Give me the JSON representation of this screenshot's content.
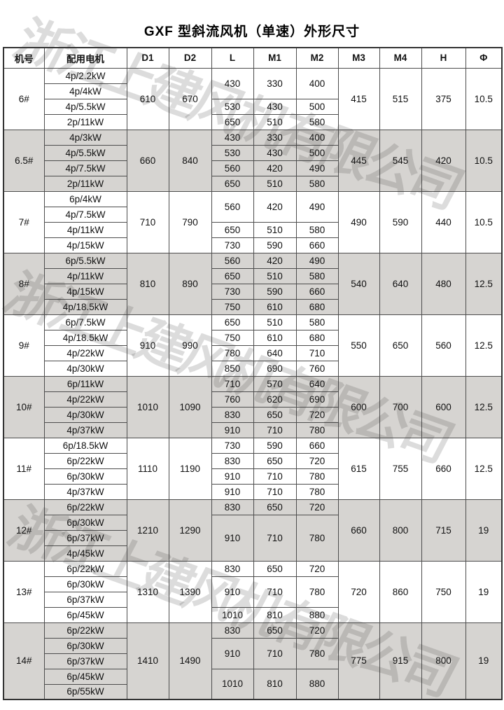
{
  "title": "GXF 型斜流风机（单速）外形尺寸",
  "watermark": {
    "text": "浙江上建风机有限公司",
    "color": "rgba(45,45,45,0.17)"
  },
  "colors": {
    "shaded_row_bg": "#d6d4d1",
    "border": "#4d4d4d",
    "text": "#111111"
  },
  "table": {
    "headers": [
      "机号",
      "配用电机",
      "D1",
      "D2",
      "L",
      "M1",
      "M2",
      "M3",
      "M4",
      "H",
      "Φ"
    ],
    "sections": [
      {
        "model": "6#",
        "d1": "610",
        "d2": "670",
        "m3": "415",
        "m4": "515",
        "h": "375",
        "phi": "10.5",
        "motors": [
          "4p/2.2kW",
          "4p/4kW",
          "4p/5.5kW",
          "2p/11kW"
        ],
        "groups": [
          {
            "l": "430",
            "m1": "330",
            "m2": "400",
            "span": 2
          },
          {
            "l": "530",
            "m1": "430",
            "m2": "500",
            "span": 1
          },
          {
            "l": "650",
            "m1": "510",
            "m2": "580",
            "span": 1
          }
        ]
      },
      {
        "model": "6.5#",
        "d1": "660",
        "d2": "840",
        "m3": "445",
        "m4": "545",
        "h": "420",
        "phi": "10.5",
        "motors": [
          "4p/3kW",
          "4p/5.5kW",
          "4p/7.5kW",
          "2p/11kW"
        ],
        "groups": [
          {
            "l": "430",
            "m1": "330",
            "m2": "400",
            "span": 1
          },
          {
            "l": "530",
            "m1": "430",
            "m2": "500",
            "span": 1
          },
          {
            "l": "560",
            "m1": "420",
            "m2": "490",
            "span": 1
          },
          {
            "l": "650",
            "m1": "510",
            "m2": "580",
            "span": 1
          }
        ]
      },
      {
        "model": "7#",
        "d1": "710",
        "d2": "790",
        "m3": "490",
        "m4": "590",
        "h": "440",
        "phi": "10.5",
        "motors": [
          "6p/4kW",
          "4p/7.5kW",
          "4p/11kW",
          "4p/15kW"
        ],
        "groups": [
          {
            "l": "560",
            "m1": "420",
            "m2": "490",
            "span": 2
          },
          {
            "l": "650",
            "m1": "510",
            "m2": "580",
            "span": 1
          },
          {
            "l": "730",
            "m1": "590",
            "m2": "660",
            "span": 1
          }
        ]
      },
      {
        "model": "8#",
        "d1": "810",
        "d2": "890",
        "m3": "540",
        "m4": "640",
        "h": "480",
        "phi": "12.5",
        "motors": [
          "6p/5.5kW",
          "4p/11kW",
          "4p/15kW",
          "4p/18.5kW"
        ],
        "groups": [
          {
            "l": "560",
            "m1": "420",
            "m2": "490",
            "span": 1
          },
          {
            "l": "650",
            "m1": "510",
            "m2": "580",
            "span": 1
          },
          {
            "l": "730",
            "m1": "590",
            "m2": "660",
            "span": 1
          },
          {
            "l": "750",
            "m1": "610",
            "m2": "680",
            "span": 1
          }
        ]
      },
      {
        "model": "9#",
        "d1": "910",
        "d2": "990",
        "m3": "550",
        "m4": "650",
        "h": "560",
        "phi": "12.5",
        "motors": [
          "6p/7.5kW",
          "4p/18.5kW",
          "4p/22kW",
          "4p/30kW"
        ],
        "groups": [
          {
            "l": "650",
            "m1": "510",
            "m2": "580",
            "span": 1
          },
          {
            "l": "750",
            "m1": "610",
            "m2": "680",
            "span": 1
          },
          {
            "l": "780",
            "m1": "640",
            "m2": "710",
            "span": 1
          },
          {
            "l": "850",
            "m1": "690",
            "m2": "760",
            "span": 1
          }
        ]
      },
      {
        "model": "10#",
        "d1": "1010",
        "d2": "1090",
        "m3": "600",
        "m4": "700",
        "h": "600",
        "phi": "12.5",
        "motors": [
          "6p/11kW",
          "4p/22kW",
          "4p/30kW",
          "4p/37kW"
        ],
        "groups": [
          {
            "l": "710",
            "m1": "570",
            "m2": "640",
            "span": 1
          },
          {
            "l": "760",
            "m1": "620",
            "m2": "690",
            "span": 1
          },
          {
            "l": "830",
            "m1": "650",
            "m2": "720",
            "span": 1
          },
          {
            "l": "910",
            "m1": "710",
            "m2": "780",
            "span": 1
          }
        ]
      },
      {
        "model": "11#",
        "d1": "1110",
        "d2": "1190",
        "m3": "615",
        "m4": "755",
        "h": "660",
        "phi": "12.5",
        "motors": [
          "6p/18.5kW",
          "6p/22kW",
          "6p/30kW",
          "4p/37kW"
        ],
        "groups": [
          {
            "l": "730",
            "m1": "590",
            "m2": "660",
            "span": 1
          },
          {
            "l": "830",
            "m1": "650",
            "m2": "720",
            "span": 1
          },
          {
            "l": "910",
            "m1": "710",
            "m2": "780",
            "span": 1
          },
          {
            "l": "910",
            "m1": "710",
            "m2": "780",
            "span": 1
          }
        ]
      },
      {
        "model": "12#",
        "d1": "1210",
        "d2": "1290",
        "m3": "660",
        "m4": "800",
        "h": "715",
        "phi": "19",
        "motors": [
          "6p/22kW",
          "6p/30kW",
          "6p/37kW",
          "4p/45kW"
        ],
        "groups": [
          {
            "l": "830",
            "m1": "650",
            "m2": "720",
            "span": 1
          },
          {
            "l": "910",
            "m1": "710",
            "m2": "780",
            "span": 3
          }
        ]
      },
      {
        "model": "13#",
        "d1": "1310",
        "d2": "1390",
        "m3": "720",
        "m4": "860",
        "h": "750",
        "phi": "19",
        "motors": [
          "6p/22kW",
          "6p/30kW",
          "6p/37kW",
          "6p/45kW"
        ],
        "groups": [
          {
            "l": "830",
            "m1": "650",
            "m2": "720",
            "span": 1
          },
          {
            "l": "910",
            "m1": "710",
            "m2": "780",
            "span": 2
          },
          {
            "l": "1010",
            "m1": "810",
            "m2": "880",
            "span": 1
          }
        ]
      },
      {
        "model": "14#",
        "d1": "1410",
        "d2": "1490",
        "m3": "775",
        "m4": "915",
        "h": "800",
        "phi": "19",
        "motors": [
          "6p/22kW",
          "6p/30kW",
          "6p/37kW",
          "6p/45kW",
          "6p/55kW"
        ],
        "groups": [
          {
            "l": "830",
            "m1": "650",
            "m2": "720",
            "span": 1
          },
          {
            "l": "910",
            "m1": "710",
            "m2": "780",
            "span": 2
          },
          {
            "l": "1010",
            "m1": "810",
            "m2": "880",
            "span": 2
          }
        ]
      }
    ]
  }
}
